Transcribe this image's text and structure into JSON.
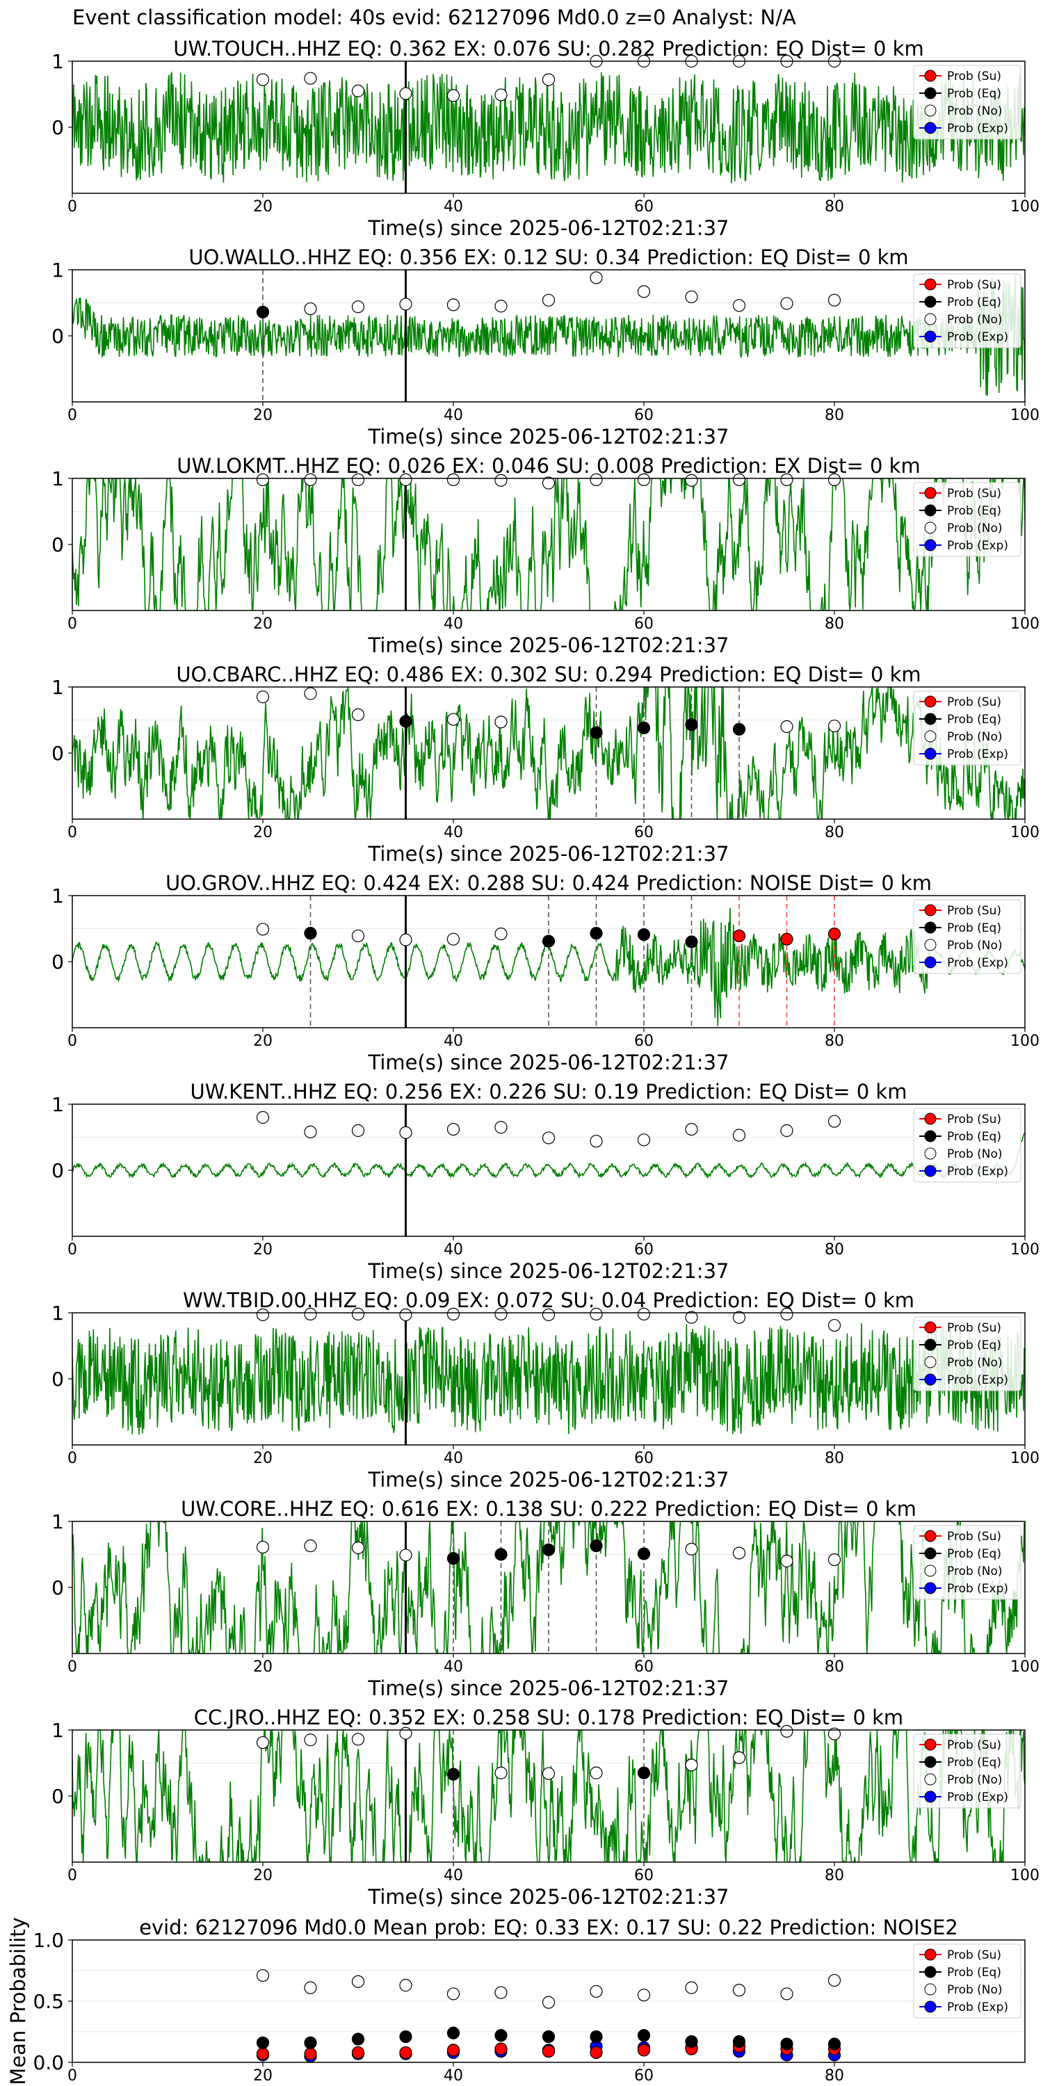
{
  "suptitle": "Event classification model: 40s evid: 62127096 Md0.0 z=0 Analyst: N/A",
  "colors": {
    "trace": "#008000",
    "su": "#ff0000",
    "eq": "#000000",
    "no": "#ffffff",
    "exp": "#0000ff",
    "pick_line": "#000000",
    "eq_marker_line": "#555555",
    "su_marker_line": "#ff4444"
  },
  "legend_entries": [
    "Prob (Su)",
    "Prob (Eq)",
    "Prob (No)",
    "Prob (Exp)"
  ],
  "chart_data": [
    {
      "type": "line",
      "title": "UW.TOUCH..HHZ   EQ: 0.362  EX: 0.076  SU: 0.282   Prediction: EQ    Dist= 0 km",
      "xlabel": "Time(s) since 2025-06-12T02:21:37",
      "xlim": [
        0,
        100
      ],
      "ylim": [
        -1,
        1
      ],
      "xticks": [
        0,
        20,
        40,
        60,
        80,
        100
      ],
      "yticks": [
        0,
        1
      ],
      "grid": "y",
      "legend": "top-right",
      "trace_style": "high-frequency noise",
      "pick_time": 35,
      "prob_no": [
        [
          20,
          0.72
        ],
        [
          25,
          0.74
        ],
        [
          30,
          0.55
        ],
        [
          35,
          0.51
        ],
        [
          40,
          0.48
        ],
        [
          45,
          0.49
        ],
        [
          50,
          0.72
        ],
        [
          55,
          1.0
        ],
        [
          60,
          1.0
        ],
        [
          65,
          1.0
        ],
        [
          70,
          1.0
        ],
        [
          75,
          1.0
        ],
        [
          80,
          1.0
        ]
      ],
      "prob_eq": [],
      "prob_su": [],
      "prob_exp": [],
      "eq_lines": [],
      "su_lines": []
    },
    {
      "type": "line",
      "title": "UO.WALLO..HHZ   EQ: 0.356  EX: 0.12  SU: 0.34   Prediction: EQ    Dist= 0 km",
      "xlabel": "Time(s) since 2025-06-12T02:21:37",
      "xlim": [
        0,
        100
      ],
      "ylim": [
        -1,
        1
      ],
      "xticks": [
        0,
        20,
        40,
        60,
        80,
        100
      ],
      "yticks": [
        0,
        1
      ],
      "grid": "y",
      "legend": "top-right",
      "trace_style": "low-amplitude noise",
      "pick_time": 35,
      "prob_no": [
        [
          25,
          0.41
        ],
        [
          30,
          0.44
        ],
        [
          35,
          0.48
        ],
        [
          40,
          0.47
        ],
        [
          45,
          0.45
        ],
        [
          50,
          0.54
        ],
        [
          55,
          0.88
        ],
        [
          60,
          0.67
        ],
        [
          65,
          0.59
        ],
        [
          70,
          0.46
        ],
        [
          75,
          0.49
        ],
        [
          80,
          0.54
        ]
      ],
      "prob_eq": [
        [
          20,
          0.36
        ]
      ],
      "prob_su": [],
      "prob_exp": [],
      "eq_lines": [
        20
      ],
      "su_lines": []
    },
    {
      "type": "line",
      "title": "UW.LOKMT..HHZ   EQ: 0.026  EX: 0.046  SU: 0.008   Prediction: EX    Dist= 0 km",
      "xlabel": "Time(s) since 2025-06-12T02:21:37",
      "xlim": [
        0,
        100
      ],
      "ylim": [
        -1,
        1
      ],
      "xticks": [
        0,
        20,
        40,
        60,
        80,
        100
      ],
      "yticks": [
        0,
        1
      ],
      "grid": "y",
      "legend": "top-right",
      "trace_style": "wavy",
      "pick_time": 35,
      "prob_no": [
        [
          20,
          0.98
        ],
        [
          25,
          0.98
        ],
        [
          30,
          0.98
        ],
        [
          35,
          0.98
        ],
        [
          40,
          0.98
        ],
        [
          45,
          0.97
        ],
        [
          50,
          0.93
        ],
        [
          55,
          0.98
        ],
        [
          60,
          0.98
        ],
        [
          65,
          0.97
        ],
        [
          70,
          0.98
        ],
        [
          75,
          0.98
        ],
        [
          80,
          0.98
        ]
      ],
      "prob_eq": [],
      "prob_su": [],
      "prob_exp": [],
      "eq_lines": [],
      "su_lines": []
    },
    {
      "type": "line",
      "title": "UO.CBARC..HHZ   EQ: 0.486  EX: 0.302  SU: 0.294   Prediction: EQ    Dist= 0 km",
      "xlabel": "Time(s) since 2025-06-12T02:21:37",
      "xlim": [
        0,
        100
      ],
      "ylim": [
        -1,
        1
      ],
      "xticks": [
        0,
        20,
        40,
        60,
        80,
        100
      ],
      "yticks": [
        0,
        1
      ],
      "grid": "y",
      "legend": "top-right",
      "trace_style": "wavy-burst",
      "pick_time": 35,
      "prob_no": [
        [
          20,
          0.85
        ],
        [
          25,
          0.9
        ],
        [
          30,
          0.58
        ],
        [
          40,
          0.51
        ],
        [
          45,
          0.47
        ],
        [
          75,
          0.4
        ],
        [
          80,
          0.41
        ]
      ],
      "prob_eq": [
        [
          35,
          0.48
        ],
        [
          55,
          0.31
        ],
        [
          60,
          0.38
        ],
        [
          65,
          0.43
        ],
        [
          70,
          0.36
        ]
      ],
      "prob_su": [],
      "prob_exp": [],
      "eq_lines": [
        55,
        60,
        65,
        70
      ],
      "su_lines": []
    },
    {
      "type": "line",
      "title": "UO.GROV..HHZ   EQ: 0.424  EX: 0.288  SU: 0.424   Prediction: NOISE    Dist= 0 km",
      "xlabel": "Time(s) since 2025-06-12T02:21:37",
      "xlim": [
        0,
        100
      ],
      "ylim": [
        -1,
        1
      ],
      "xticks": [
        0,
        20,
        40,
        60,
        80,
        100
      ],
      "yticks": [
        0,
        1
      ],
      "grid": "y",
      "legend": "top-right",
      "trace_style": "sinusoid-burst",
      "pick_time": 35,
      "prob_no": [
        [
          20,
          0.49
        ],
        [
          30,
          0.39
        ],
        [
          35,
          0.33
        ],
        [
          40,
          0.34
        ],
        [
          45,
          0.42
        ]
      ],
      "prob_eq": [
        [
          25,
          0.43
        ],
        [
          50,
          0.31
        ],
        [
          55,
          0.43
        ],
        [
          60,
          0.41
        ],
        [
          65,
          0.3
        ]
      ],
      "prob_su": [
        [
          70,
          0.39
        ],
        [
          75,
          0.34
        ],
        [
          80,
          0.42
        ]
      ],
      "prob_exp": [],
      "eq_lines": [
        25,
        50,
        55,
        60,
        65
      ],
      "su_lines": [
        70,
        75,
        80
      ]
    },
    {
      "type": "line",
      "title": "UW.KENT..HHZ   EQ: 0.256  EX: 0.226  SU: 0.19   Prediction: EQ    Dist= 0 km",
      "xlabel": "Time(s) since 2025-06-12T02:21:37",
      "xlim": [
        0,
        100
      ],
      "ylim": [
        -1,
        1
      ],
      "xticks": [
        0,
        20,
        40,
        60,
        80,
        100
      ],
      "yticks": [
        0,
        1
      ],
      "grid": "y",
      "legend": "top-right",
      "trace_style": "flat",
      "pick_time": 35,
      "prob_no": [
        [
          20,
          0.8
        ],
        [
          25,
          0.58
        ],
        [
          30,
          0.6
        ],
        [
          35,
          0.57
        ],
        [
          40,
          0.62
        ],
        [
          45,
          0.65
        ],
        [
          50,
          0.49
        ],
        [
          55,
          0.44
        ],
        [
          60,
          0.46
        ],
        [
          65,
          0.62
        ],
        [
          70,
          0.53
        ],
        [
          75,
          0.6
        ],
        [
          80,
          0.74
        ]
      ],
      "prob_eq": [],
      "prob_su": [],
      "prob_exp": [],
      "eq_lines": [],
      "su_lines": []
    },
    {
      "type": "line",
      "title": "WW.TBID.00.HHZ   EQ: 0.09  EX: 0.072  SU: 0.04   Prediction: EQ    Dist= 0 km",
      "xlabel": "Time(s) since 2025-06-12T02:21:37",
      "xlim": [
        0,
        100
      ],
      "ylim": [
        -1,
        1
      ],
      "xticks": [
        0,
        20,
        40,
        60,
        80,
        100
      ],
      "yticks": [
        0,
        1
      ],
      "grid": "y",
      "legend": "top-right",
      "trace_style": "high-frequency noise",
      "pick_time": 35,
      "prob_no": [
        [
          20,
          0.97
        ],
        [
          25,
          0.98
        ],
        [
          30,
          0.98
        ],
        [
          35,
          0.97
        ],
        [
          40,
          0.98
        ],
        [
          45,
          0.98
        ],
        [
          50,
          0.97
        ],
        [
          55,
          0.98
        ],
        [
          60,
          0.98
        ],
        [
          65,
          0.93
        ],
        [
          70,
          0.93
        ],
        [
          75,
          0.98
        ],
        [
          80,
          0.81
        ]
      ],
      "prob_eq": [],
      "prob_su": [],
      "prob_exp": [],
      "eq_lines": [],
      "su_lines": []
    },
    {
      "type": "line",
      "title": "UW.CORE..HHZ   EQ: 0.616  EX: 0.138  SU: 0.222   Prediction: EQ    Dist= 0 km",
      "xlabel": "Time(s) since 2025-06-12T02:21:37",
      "xlim": [
        0,
        100
      ],
      "ylim": [
        -1,
        1
      ],
      "xticks": [
        0,
        20,
        40,
        60,
        80,
        100
      ],
      "yticks": [
        0,
        1
      ],
      "grid": "y",
      "legend": "top-right",
      "trace_style": "wavy",
      "pick_time": 35,
      "prob_no": [
        [
          20,
          0.61
        ],
        [
          25,
          0.63
        ],
        [
          30,
          0.6
        ],
        [
          35,
          0.49
        ],
        [
          65,
          0.58
        ],
        [
          70,
          0.52
        ],
        [
          75,
          0.4
        ],
        [
          80,
          0.42
        ]
      ],
      "prob_eq": [
        [
          40,
          0.44
        ],
        [
          45,
          0.5
        ],
        [
          50,
          0.57
        ],
        [
          55,
          0.63
        ],
        [
          60,
          0.51
        ]
      ],
      "prob_su": [],
      "prob_exp": [],
      "eq_lines": [
        40,
        45,
        50,
        55,
        60
      ],
      "su_lines": []
    },
    {
      "type": "line",
      "title": "CC.JRO..HHZ   EQ: 0.352  EX: 0.258  SU: 0.178   Prediction: EQ    Dist= 0 km",
      "xlabel": "Time(s) since 2025-06-12T02:21:37",
      "xlim": [
        0,
        100
      ],
      "ylim": [
        -1,
        1
      ],
      "xticks": [
        0,
        20,
        40,
        60,
        80,
        100
      ],
      "yticks": [
        0,
        1
      ],
      "grid": "y",
      "legend": "top-right",
      "trace_style": "wavy",
      "pick_time": 35,
      "prob_no": [
        [
          20,
          0.81
        ],
        [
          25,
          0.85
        ],
        [
          30,
          0.86
        ],
        [
          35,
          0.95
        ],
        [
          45,
          0.35
        ],
        [
          50,
          0.34
        ],
        [
          55,
          0.35
        ],
        [
          65,
          0.47
        ],
        [
          70,
          0.58
        ],
        [
          75,
          0.98
        ],
        [
          80,
          0.94
        ]
      ],
      "prob_eq": [
        [
          40,
          0.33
        ],
        [
          60,
          0.35
        ]
      ],
      "prob_su": [],
      "prob_exp": [],
      "eq_lines": [
        40,
        60
      ],
      "su_lines": []
    },
    {
      "type": "scatter",
      "title": "evid: 62127096  Md0.0   Mean prob:    EQ: 0.33  EX: 0.17  SU: 0.22   Prediction: NOISE2",
      "ylabel": "Mean Probability",
      "xlim": [
        0,
        100
      ],
      "ylim": [
        0,
        1
      ],
      "xticks": [
        0,
        20,
        40,
        60,
        80
      ],
      "yticks": [
        0,
        0.5,
        1.0
      ],
      "grid": "y",
      "legend": "top-right",
      "prob_no": [
        [
          20,
          0.71
        ],
        [
          25,
          0.61
        ],
        [
          30,
          0.66
        ],
        [
          35,
          0.63
        ],
        [
          40,
          0.56
        ],
        [
          45,
          0.57
        ],
        [
          50,
          0.49
        ],
        [
          55,
          0.58
        ],
        [
          60,
          0.55
        ],
        [
          65,
          0.61
        ],
        [
          70,
          0.59
        ],
        [
          75,
          0.56
        ],
        [
          80,
          0.67
        ]
      ],
      "prob_eq": [
        [
          20,
          0.16
        ],
        [
          25,
          0.16
        ],
        [
          30,
          0.19
        ],
        [
          35,
          0.21
        ],
        [
          40,
          0.24
        ],
        [
          45,
          0.22
        ],
        [
          50,
          0.21
        ],
        [
          55,
          0.21
        ],
        [
          60,
          0.22
        ],
        [
          65,
          0.17
        ],
        [
          70,
          0.17
        ],
        [
          75,
          0.15
        ],
        [
          80,
          0.15
        ]
      ],
      "prob_su": [
        [
          20,
          0.07
        ],
        [
          25,
          0.07
        ],
        [
          30,
          0.08
        ],
        [
          35,
          0.08
        ],
        [
          40,
          0.1
        ],
        [
          45,
          0.11
        ],
        [
          50,
          0.09
        ],
        [
          55,
          0.08
        ],
        [
          60,
          0.1
        ],
        [
          65,
          0.11
        ],
        [
          70,
          0.13
        ],
        [
          75,
          0.11
        ],
        [
          80,
          0.11
        ]
      ],
      "prob_exp": [
        [
          20,
          0.06
        ],
        [
          25,
          0.05
        ],
        [
          30,
          0.07
        ],
        [
          35,
          0.07
        ],
        [
          40,
          0.08
        ],
        [
          45,
          0.09
        ],
        [
          50,
          0.1
        ],
        [
          55,
          0.13
        ],
        [
          60,
          0.12
        ],
        [
          65,
          0.12
        ],
        [
          70,
          0.09
        ],
        [
          75,
          0.06
        ],
        [
          80,
          0.06
        ]
      ]
    }
  ]
}
